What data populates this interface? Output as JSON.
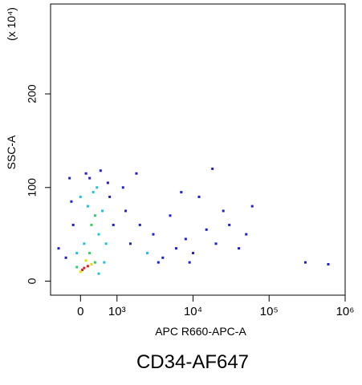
{
  "chart_data": {
    "type": "scatter",
    "title": "CD34-AF647",
    "xlabel": "APC R660-APC-A",
    "ylabel": "SSC-A",
    "y_multiplier": "(x 10⁴)",
    "xscale": "biexponential",
    "xlim": [
      -820,
      1000000
    ],
    "xticks": [
      0,
      {
        "value": 1000,
        "label": "10³"
      },
      {
        "value": 10000,
        "label": "10⁴"
      },
      {
        "value": 100000,
        "label": "10⁵"
      },
      {
        "value": 1000000,
        "label": "10⁶"
      }
    ],
    "ylim": [
      -15,
      296
    ],
    "yticks": [
      0,
      100,
      200
    ],
    "x": [
      100,
      200,
      50,
      300,
      0,
      150,
      400,
      -100,
      250,
      500,
      300,
      400,
      200,
      500,
      350,
      100,
      600,
      450,
      250,
      -200,
      -300,
      700,
      800,
      550,
      0,
      -100,
      650,
      -400,
      900,
      150,
      -250,
      750,
      1500,
      2000,
      2500,
      3000,
      4000,
      5000,
      6000,
      8000,
      10000,
      12000,
      15000,
      20000,
      25000,
      30000,
      40000,
      50000,
      60000,
      1200,
      1800,
      7000,
      18000,
      3500,
      9000,
      1300,
      300000,
      600000,
      -600
    ],
    "y": [
      14,
      16,
      12,
      18,
      10,
      22,
      20,
      15,
      30,
      8,
      60,
      70,
      80,
      50,
      95,
      40,
      75,
      100,
      110,
      60,
      110,
      40,
      90,
      118,
      90,
      30,
      20,
      25,
      60,
      115,
      85,
      105,
      40,
      60,
      30,
      50,
      25,
      70,
      35,
      45,
      30,
      90,
      55,
      40,
      75,
      60,
      35,
      50,
      80,
      100,
      115,
      95,
      120,
      20,
      20,
      75,
      20,
      18,
      35
    ],
    "colors": [
      "#e02020",
      "#e02020",
      "#e02020",
      "#e0e000",
      "#e0e000",
      "#e0e000",
      "#30d060",
      "#30d060",
      "#30d060",
      "#20c0e0",
      "#30d060",
      "#30d060",
      "#20c0e0",
      "#20c0e0",
      "#20c0e0",
      "#20c0e0",
      "#20c0e0",
      "#20c0e0",
      "#1f1fd0",
      "#1f1fd0",
      "#1f1fd0",
      "#20c0e0",
      "#1f1fd0",
      "#1f1fd0",
      "#20c0e0",
      "#20c0e0",
      "#20c0e0",
      "#1f1fd0",
      "#1f1fd0",
      "#1f1fd0",
      "#1f1fd0",
      "#1f1fd0",
      "#1f1fd0",
      "#1f1fd0",
      "#20c0e0",
      "#1f1fd0",
      "#1f1fd0",
      "#1f1fd0",
      "#1f1fd0",
      "#1f1fd0",
      "#1f1fd0",
      "#1f1fd0",
      "#1f1fd0",
      "#1f1fd0",
      "#1f1fd0",
      "#1f1fd0",
      "#1f1fd0",
      "#1f1fd0",
      "#1f1fd0",
      "#1f1fd0",
      "#1f1fd0",
      "#1f1fd0",
      "#1f1fd0",
      "#1f1fd0",
      "#1f1fd0",
      "#1f1fd0",
      "#1f1fd0",
      "#1f1fd0",
      "#1f1fd0"
    ]
  }
}
